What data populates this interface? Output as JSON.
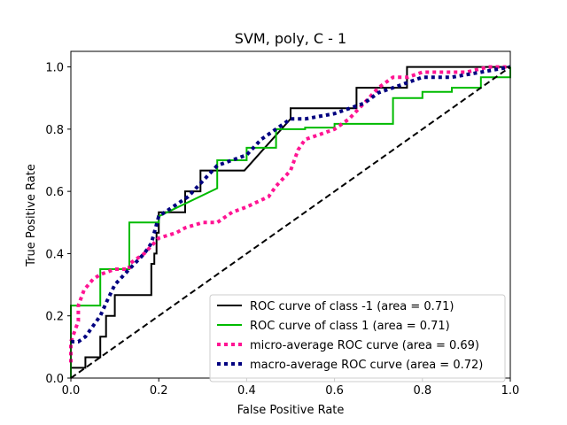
{
  "chart_data": {
    "type": "line",
    "title": "SVM, poly, C - 1",
    "xlabel": "False Positive Rate",
    "ylabel": "True Positive Rate",
    "xlim": [
      0.0,
      1.0
    ],
    "ylim": [
      0.0,
      1.05
    ],
    "x_ticks": [
      "0.0",
      "0.2",
      "0.4",
      "0.6",
      "0.8",
      "1.0"
    ],
    "y_ticks": [
      "0.0",
      "0.2",
      "0.4",
      "0.6",
      "0.8",
      "1.0"
    ],
    "grid": false,
    "legend_position": "lower-right",
    "series": [
      {
        "name": "ROC curve of class -1 (area = 0.71)",
        "color": "#000000",
        "style": "solid",
        "points": [
          [
            0.0,
            0.0
          ],
          [
            0.0,
            0.033
          ],
          [
            0.033,
            0.033
          ],
          [
            0.033,
            0.067
          ],
          [
            0.067,
            0.067
          ],
          [
            0.067,
            0.1
          ],
          [
            0.067,
            0.133
          ],
          [
            0.08,
            0.133
          ],
          [
            0.08,
            0.2
          ],
          [
            0.1,
            0.2
          ],
          [
            0.1,
            0.267
          ],
          [
            0.183,
            0.267
          ],
          [
            0.183,
            0.367
          ],
          [
            0.19,
            0.367
          ],
          [
            0.19,
            0.4
          ],
          [
            0.195,
            0.4
          ],
          [
            0.195,
            0.467
          ],
          [
            0.2,
            0.467
          ],
          [
            0.2,
            0.533
          ],
          [
            0.26,
            0.533
          ],
          [
            0.26,
            0.6
          ],
          [
            0.295,
            0.6
          ],
          [
            0.295,
            0.667
          ],
          [
            0.395,
            0.667
          ],
          [
            0.5,
            0.833
          ],
          [
            0.5,
            0.867
          ],
          [
            0.65,
            0.867
          ],
          [
            0.65,
            0.933
          ],
          [
            0.765,
            0.933
          ],
          [
            0.765,
            1.0
          ],
          [
            1.0,
            1.0
          ]
        ]
      },
      {
        "name": "ROC curve of class 1 (area = 0.71)",
        "color": "#00bb00",
        "style": "solid",
        "points": [
          [
            0.0,
            0.0
          ],
          [
            0.0,
            0.233
          ],
          [
            0.067,
            0.233
          ],
          [
            0.067,
            0.35
          ],
          [
            0.133,
            0.35
          ],
          [
            0.133,
            0.5
          ],
          [
            0.2,
            0.5
          ],
          [
            0.2,
            0.52
          ],
          [
            0.333,
            0.61
          ],
          [
            0.333,
            0.7
          ],
          [
            0.4,
            0.7
          ],
          [
            0.4,
            0.74
          ],
          [
            0.467,
            0.74
          ],
          [
            0.467,
            0.8
          ],
          [
            0.533,
            0.8
          ],
          [
            0.533,
            0.805
          ],
          [
            0.6,
            0.805
          ],
          [
            0.6,
            0.817
          ],
          [
            0.733,
            0.817
          ],
          [
            0.733,
            0.9
          ],
          [
            0.8,
            0.9
          ],
          [
            0.8,
            0.92
          ],
          [
            0.867,
            0.92
          ],
          [
            0.867,
            0.933
          ],
          [
            0.933,
            0.933
          ],
          [
            0.933,
            0.967
          ],
          [
            1.0,
            0.967
          ],
          [
            1.0,
            1.0
          ]
        ]
      },
      {
        "name": "micro-average ROC curve (area = 0.69)",
        "color": "#ff1493",
        "style": "dotted",
        "points": [
          [
            0.0,
            0.05
          ],
          [
            0.0,
            0.117
          ],
          [
            0.017,
            0.183
          ],
          [
            0.017,
            0.233
          ],
          [
            0.03,
            0.283
          ],
          [
            0.05,
            0.317
          ],
          [
            0.067,
            0.333
          ],
          [
            0.1,
            0.35
          ],
          [
            0.133,
            0.35
          ],
          [
            0.133,
            0.367
          ],
          [
            0.167,
            0.4
          ],
          [
            0.2,
            0.45
          ],
          [
            0.24,
            0.467
          ],
          [
            0.26,
            0.483
          ],
          [
            0.3,
            0.5
          ],
          [
            0.333,
            0.5
          ],
          [
            0.367,
            0.533
          ],
          [
            0.4,
            0.55
          ],
          [
            0.45,
            0.583
          ],
          [
            0.467,
            0.617
          ],
          [
            0.5,
            0.667
          ],
          [
            0.517,
            0.733
          ],
          [
            0.533,
            0.767
          ],
          [
            0.567,
            0.783
          ],
          [
            0.6,
            0.8
          ],
          [
            0.633,
            0.833
          ],
          [
            0.667,
            0.883
          ],
          [
            0.7,
            0.933
          ],
          [
            0.733,
            0.967
          ],
          [
            0.767,
            0.967
          ],
          [
            0.8,
            0.983
          ],
          [
            0.9,
            0.983
          ],
          [
            0.95,
            1.0
          ],
          [
            1.0,
            1.0
          ]
        ]
      },
      {
        "name": "macro-average ROC curve (area = 0.72)",
        "color": "#000080",
        "style": "dotted",
        "points": [
          [
            0.0,
            0.117
          ],
          [
            0.017,
            0.117
          ],
          [
            0.033,
            0.133
          ],
          [
            0.067,
            0.2
          ],
          [
            0.083,
            0.25
          ],
          [
            0.1,
            0.3
          ],
          [
            0.133,
            0.35
          ],
          [
            0.167,
            0.4
          ],
          [
            0.183,
            0.433
          ],
          [
            0.2,
            0.52
          ],
          [
            0.267,
            0.583
          ],
          [
            0.3,
            0.633
          ],
          [
            0.333,
            0.683
          ],
          [
            0.4,
            0.717
          ],
          [
            0.433,
            0.767
          ],
          [
            0.5,
            0.833
          ],
          [
            0.533,
            0.833
          ],
          [
            0.6,
            0.85
          ],
          [
            0.667,
            0.883
          ],
          [
            0.7,
            0.917
          ],
          [
            0.733,
            0.933
          ],
          [
            0.767,
            0.95
          ],
          [
            0.8,
            0.967
          ],
          [
            0.867,
            0.967
          ],
          [
            0.933,
            0.983
          ],
          [
            1.0,
            1.0
          ]
        ]
      },
      {
        "name": "",
        "color": "#000000",
        "style": "dashed",
        "points": [
          [
            0.0,
            0.0
          ],
          [
            1.0,
            1.0
          ]
        ]
      }
    ]
  }
}
